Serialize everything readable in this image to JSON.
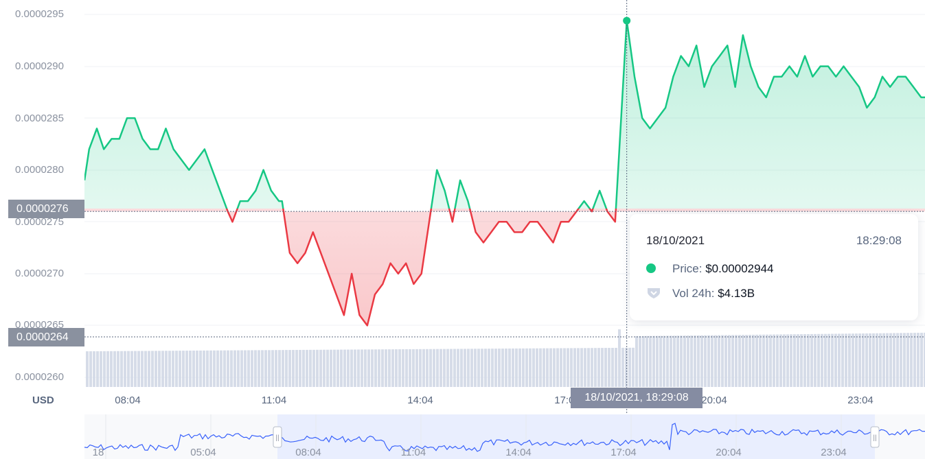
{
  "currency_label": "USD",
  "y_axis": {
    "ticks": [
      "0.0000295",
      "0.0000290",
      "0.0000285",
      "0.0000280",
      "0.0000275",
      "0.0000270",
      "0.0000265",
      "0.0000260"
    ]
  },
  "x_axis": {
    "ticks": [
      "08:04",
      "11:04",
      "14:04",
      "17:04",
      "20:04",
      "23:04"
    ]
  },
  "navigator": {
    "ticks": [
      "18",
      "05:04",
      "08:04",
      "11:04",
      "14:04",
      "17:04",
      "20:04",
      "23:04"
    ],
    "handle_left_glyph": "||",
    "handle_right_glyph": "||"
  },
  "crosshair": {
    "price_label": "0.0000276",
    "volume_label": "0.0000264",
    "time_label": "18/10/2021, 18:29:08"
  },
  "tooltip": {
    "date": "18/10/2021",
    "time": "18:29:08",
    "price_label": "Price:",
    "price_value": "$0.00002944",
    "vol_label": "Vol 24h:",
    "vol_value": "$4.13B",
    "price_icon": "green-dot-icon",
    "vol_icon": "volume-shield-icon"
  },
  "colors": {
    "up": "#16c784",
    "down": "#ea3943",
    "grid": "#eff2f5",
    "volume": "#cfd6e4",
    "navigator_line": "#3861fb",
    "navigator_fill": "#e3e9ff",
    "label_bg": "#8a919f"
  },
  "chart_data": {
    "type": "line",
    "baseline": 2.76e-05,
    "ylim": [
      2.59e-05,
      2.97e-05
    ],
    "x_start": "06:49",
    "x_end": "00:54",
    "highlight_point": {
      "x": "18:29",
      "y": 2.944e-05
    },
    "series": [
      {
        "name": "Price",
        "points": [
          [
            "06:49",
            2.79e-05
          ],
          [
            "06:55",
            2.82e-05
          ],
          [
            "07:05",
            2.84e-05
          ],
          [
            "07:14",
            2.82e-05
          ],
          [
            "07:24",
            2.83e-05
          ],
          [
            "07:34",
            2.83e-05
          ],
          [
            "07:44",
            2.85e-05
          ],
          [
            "07:54",
            2.85e-05
          ],
          [
            "08:04",
            2.83e-05
          ],
          [
            "08:14",
            2.82e-05
          ],
          [
            "08:24",
            2.82e-05
          ],
          [
            "08:34",
            2.84e-05
          ],
          [
            "08:44",
            2.82e-05
          ],
          [
            "08:54",
            2.81e-05
          ],
          [
            "09:04",
            2.8e-05
          ],
          [
            "09:14",
            2.81e-05
          ],
          [
            "09:24",
            2.82e-05
          ],
          [
            "09:34",
            2.8e-05
          ],
          [
            "09:44",
            2.78e-05
          ],
          [
            "09:54",
            2.76e-05
          ],
          [
            "10:00",
            2.75e-05
          ],
          [
            "10:10",
            2.77e-05
          ],
          [
            "10:20",
            2.77e-05
          ],
          [
            "10:30",
            2.78e-05
          ],
          [
            "10:40",
            2.8e-05
          ],
          [
            "10:50",
            2.78e-05
          ],
          [
            "11:00",
            2.77e-05
          ],
          [
            "11:04",
            2.77e-05
          ],
          [
            "11:14",
            2.72e-05
          ],
          [
            "11:24",
            2.71e-05
          ],
          [
            "11:34",
            2.72e-05
          ],
          [
            "11:44",
            2.74e-05
          ],
          [
            "11:54",
            2.72e-05
          ],
          [
            "12:04",
            2.7e-05
          ],
          [
            "12:14",
            2.68e-05
          ],
          [
            "12:24",
            2.66e-05
          ],
          [
            "12:34",
            2.7e-05
          ],
          [
            "12:44",
            2.66e-05
          ],
          [
            "12:54",
            2.65e-05
          ],
          [
            "13:04",
            2.68e-05
          ],
          [
            "13:14",
            2.69e-05
          ],
          [
            "13:24",
            2.71e-05
          ],
          [
            "13:34",
            2.7e-05
          ],
          [
            "13:44",
            2.71e-05
          ],
          [
            "13:54",
            2.69e-05
          ],
          [
            "14:04",
            2.7e-05
          ],
          [
            "14:14",
            2.75e-05
          ],
          [
            "14:24",
            2.8e-05
          ],
          [
            "14:34",
            2.78e-05
          ],
          [
            "14:44",
            2.75e-05
          ],
          [
            "14:54",
            2.79e-05
          ],
          [
            "15:04",
            2.77e-05
          ],
          [
            "15:14",
            2.74e-05
          ],
          [
            "15:24",
            2.73e-05
          ],
          [
            "15:34",
            2.74e-05
          ],
          [
            "15:44",
            2.75e-05
          ],
          [
            "15:54",
            2.75e-05
          ],
          [
            "16:04",
            2.74e-05
          ],
          [
            "16:14",
            2.74e-05
          ],
          [
            "16:24",
            2.75e-05
          ],
          [
            "16:34",
            2.75e-05
          ],
          [
            "16:44",
            2.74e-05
          ],
          [
            "16:54",
            2.73e-05
          ],
          [
            "17:04",
            2.75e-05
          ],
          [
            "17:14",
            2.75e-05
          ],
          [
            "17:24",
            2.76e-05
          ],
          [
            "17:34",
            2.77e-05
          ],
          [
            "17:44",
            2.76e-05
          ],
          [
            "17:54",
            2.78e-05
          ],
          [
            "18:04",
            2.76e-05
          ],
          [
            "18:14",
            2.75e-05
          ],
          [
            "18:29",
            2.944e-05
          ],
          [
            "18:39",
            2.89e-05
          ],
          [
            "18:49",
            2.85e-05
          ],
          [
            "18:59",
            2.84e-05
          ],
          [
            "19:09",
            2.85e-05
          ],
          [
            "19:19",
            2.86e-05
          ],
          [
            "19:29",
            2.89e-05
          ],
          [
            "19:39",
            2.91e-05
          ],
          [
            "19:49",
            2.9e-05
          ],
          [
            "19:59",
            2.92e-05
          ],
          [
            "20:09",
            2.88e-05
          ],
          [
            "20:19",
            2.9e-05
          ],
          [
            "20:29",
            2.91e-05
          ],
          [
            "20:39",
            2.92e-05
          ],
          [
            "20:49",
            2.88e-05
          ],
          [
            "20:59",
            2.93e-05
          ],
          [
            "21:09",
            2.9e-05
          ],
          [
            "21:19",
            2.88e-05
          ],
          [
            "21:29",
            2.87e-05
          ],
          [
            "21:39",
            2.89e-05
          ],
          [
            "21:49",
            2.89e-05
          ],
          [
            "21:59",
            2.9e-05
          ],
          [
            "22:09",
            2.89e-05
          ],
          [
            "22:19",
            2.91e-05
          ],
          [
            "22:29",
            2.89e-05
          ],
          [
            "22:39",
            2.9e-05
          ],
          [
            "22:49",
            2.9e-05
          ],
          [
            "22:59",
            2.89e-05
          ],
          [
            "23:09",
            2.9e-05
          ],
          [
            "23:19",
            2.89e-05
          ],
          [
            "23:29",
            2.88e-05
          ],
          [
            "23:39",
            2.86e-05
          ],
          [
            "23:49",
            2.87e-05
          ],
          [
            "23:59",
            2.89e-05
          ],
          [
            "00:09",
            2.88e-05
          ],
          [
            "00:19",
            2.89e-05
          ],
          [
            "00:29",
            2.89e-05
          ],
          [
            "00:39",
            2.88e-05
          ],
          [
            "00:49",
            2.87e-05
          ],
          [
            "00:54",
            2.87e-05
          ]
        ]
      }
    ]
  }
}
